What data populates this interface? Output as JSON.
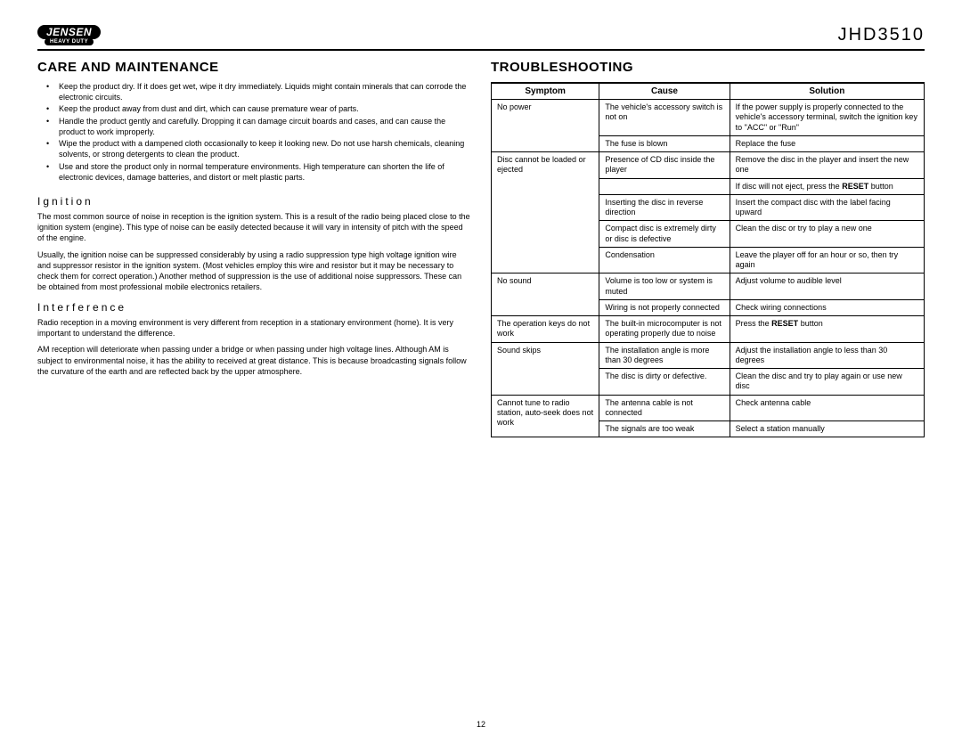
{
  "header": {
    "logo_top": "JENSEN",
    "logo_bottom": "HEAVY DUTY",
    "model": "JHD3510"
  },
  "left": {
    "title": "Care and Maintenance",
    "bullets": [
      "Keep the product dry. If it does get wet, wipe it dry immediately. Liquids might contain minerals that can corrode the electronic circuits.",
      "Keep the product away from dust and dirt, which can cause premature wear of parts.",
      "Handle the product gently and carefully. Dropping it can damage circuit boards and cases, and can cause the product to work improperly.",
      "Wipe the product with a dampened cloth occasionally to keep it looking new. Do not use harsh chemicals, cleaning solvents, or strong detergents to clean the product.",
      "Use and store the product only in normal temperature environments. High temperature can shorten the life of electronic devices, damage batteries, and distort or melt plastic parts."
    ],
    "ignition_head": "Ignition",
    "ignition_p1": "The most common source of noise in reception is the ignition system. This is a result of the radio being placed close to the ignition system (engine). This type of noise can be easily detected because it will vary in intensity of pitch with the speed of the engine.",
    "ignition_p2": "Usually, the ignition noise can be suppressed considerably by using a radio suppression type high voltage ignition wire and suppressor resistor in the ignition system. (Most vehicles employ this wire and resistor but it may be necessary to check them for correct operation.) Another method of suppression is the use of additional noise suppressors. These can be obtained from most professional mobile electronics retailers.",
    "interference_head": "Interference",
    "interference_p1": "Radio reception in a moving environment is very different from reception in a stationary environment (home). It is very important to understand the difference.",
    "interference_p2": "AM reception will deteriorate when passing under a bridge or when passing under high voltage lines. Although AM is subject to environmental noise, it has the ability to received at great distance. This is because broadcasting signals follow the curvature of the earth and are reflected back by the upper atmosphere."
  },
  "right": {
    "title": "Troubleshooting",
    "headers": [
      "Symptom",
      "Cause",
      "Solution"
    ],
    "rows": [
      {
        "s": "No power",
        "c": "The vehicle's accessory switch is not on",
        "o": "If the power supply is properly connected to the vehicle's accessory terminal, switch the ignition key to \"ACC\" or \"Run\""
      },
      {
        "s": "",
        "c": "The fuse is blown",
        "o": "Replace the fuse"
      },
      {
        "s": "Disc cannot be loaded or ejected",
        "c": "Presence of CD disc inside the player",
        "o": "Remove the disc in the player and insert the new one"
      },
      {
        "s": "",
        "c": "",
        "o": "If disc will not eject, press the <strong>RESET</strong> button"
      },
      {
        "s": "",
        "c": "Inserting the disc in reverse direction",
        "o": "Insert the compact disc with the label facing upward"
      },
      {
        "s": "",
        "c": "Compact disc is extremely dirty or disc is defective",
        "o": "Clean the disc or try to play a new one"
      },
      {
        "s": "",
        "c": "Condensation",
        "o": "Leave the player off for an hour or so, then try again"
      },
      {
        "s": "No sound",
        "c": "Volume is too low or system is muted",
        "o": "Adjust volume to audible level"
      },
      {
        "s": "",
        "c": "Wiring is not properly connected",
        "o": "Check wiring connections"
      },
      {
        "s": "The operation keys do not work",
        "c": "The built-in microcomputer is not operating properly due to noise",
        "o": "Press the <strong>RESET</strong> button"
      },
      {
        "s": "Sound skips",
        "c": "The installation angle is more than 30 degrees",
        "o": "Adjust the installation angle to less than 30 degrees"
      },
      {
        "s": "",
        "c": "The disc is dirty or defective.",
        "o": "Clean the disc and try to play again or use new disc"
      },
      {
        "s": "Cannot tune to radio station, auto-seek does not work",
        "c": "The antenna cable is not connected",
        "o": "Check antenna cable"
      },
      {
        "s": "",
        "c": "The signals are too weak",
        "o": "Select a station manually"
      }
    ],
    "symptom_spans": [
      2,
      5,
      2,
      1,
      2,
      2
    ]
  },
  "page_num": "12"
}
